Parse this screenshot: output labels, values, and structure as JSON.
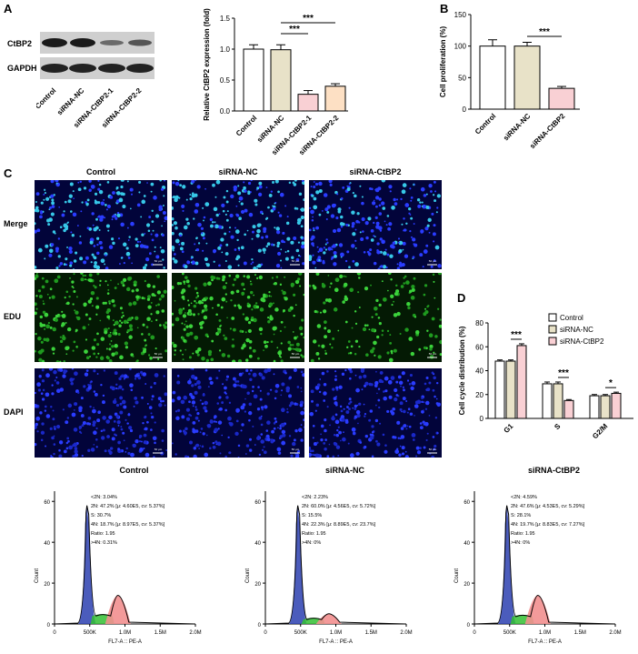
{
  "panels": {
    "a": "A",
    "b": "B",
    "c": "C",
    "d": "D"
  },
  "western_blot": {
    "bands": [
      "CtBP2",
      "GAPDH"
    ],
    "lanes": [
      "Control",
      "siRNA-NC",
      "siRNA-CtBP2-1",
      "siRNA-CtBP2-2"
    ]
  },
  "chart_data": [
    {
      "id": "A-bar",
      "type": "bar",
      "categories": [
        "Control",
        "siRNA-NC",
        "siRNA-CtBP2-1",
        "siRNA-CtBP2-2"
      ],
      "values": [
        1.0,
        0.99,
        0.27,
        0.4
      ],
      "errors": [
        0.07,
        0.08,
        0.06,
        0.04
      ],
      "colors": [
        "#ffffff",
        "#e8e2c8",
        "#f9d0d4",
        "#fde0c4"
      ],
      "ylabel": "Relative CtBP2 expression (fold)",
      "ylim": [
        0,
        1.5
      ],
      "yticks": [
        "0.0",
        "0.5",
        "1.0",
        "1.5"
      ],
      "sig": [
        {
          "label": "***",
          "from": 1,
          "to": 2
        },
        {
          "label": "***",
          "from": 1,
          "to": 3
        }
      ]
    },
    {
      "id": "B-bar",
      "type": "bar",
      "categories": [
        "Control",
        "siRNA-NC",
        "siRNA-CtBP2"
      ],
      "values": [
        100,
        100,
        33
      ],
      "errors": [
        10,
        6,
        3
      ],
      "colors": [
        "#ffffff",
        "#e8e2c8",
        "#f9d0d4"
      ],
      "ylabel": "Cell proliferation (%)",
      "ylim": [
        0,
        150
      ],
      "yticks": [
        "0",
        "50",
        "100",
        "150"
      ],
      "sig": [
        {
          "label": "***",
          "from": 1,
          "to": 2
        }
      ]
    },
    {
      "id": "D-bar",
      "type": "bar",
      "categories": [
        "G1",
        "S",
        "G2/M"
      ],
      "series": [
        {
          "name": "Control",
          "values": [
            48,
            29,
            19
          ],
          "errors": [
            1,
            1.5,
            1
          ],
          "color": "#ffffff"
        },
        {
          "name": "siRNA-NC",
          "values": [
            48,
            29,
            19
          ],
          "errors": [
            1,
            1.5,
            1
          ],
          "color": "#e8e2c8"
        },
        {
          "name": "siRNA-CtBP2",
          "values": [
            61,
            15,
            21
          ],
          "errors": [
            1.5,
            0.8,
            1
          ],
          "color": "#f9d0d4"
        }
      ],
      "ylabel": "Cell cycle distribution (%)",
      "ylim": [
        0,
        80
      ],
      "yticks": [
        "0",
        "20",
        "40",
        "60",
        "80"
      ],
      "sig": [
        "***",
        "***",
        "*"
      ],
      "legend_position": "top-right"
    }
  ],
  "microscopy": {
    "columns": [
      "Control",
      "siRNA-NC",
      "siRNA-CtBP2"
    ],
    "rows": [
      "Merge",
      "EDU",
      "DAPI"
    ],
    "scale_bar": "50 μm"
  },
  "flow": [
    {
      "title": "Control",
      "stats": [
        "<2N: 3.04%",
        "2N: 47.2%  [μ: 4.60E5, cv: 5.37%]",
        "S: 30.7%",
        "4N: 18.7%  [μ: 8.97E5, cv: 5.37%]",
        "Ratio: 1.95",
        ">4N: 0.31%"
      ],
      "s_level": 0.22
    },
    {
      "title": "siRNA-NC",
      "stats": [
        "<2N: 2.23%",
        "2N: 60.0%  [μ: 4.56E5, cv: 5.72%]",
        "S: 15.5%",
        "4N: 22.3%  [μ: 8.89E5, cv: 23.7%]",
        "Ratio: 1.95",
        ">4N: 0%"
      ],
      "s_level": 0.12
    },
    {
      "title": "siRNA-CtBP2",
      "stats": [
        "<2N: 4.59%",
        "2N: 47.6%  [μ: 4.53E5, cv: 5.29%]",
        "S: 28.1%",
        "4N: 19.7%  [μ: 8.83E5, cv: 7.27%]",
        "Ratio: 1.95",
        ">4N: 0%"
      ],
      "s_level": 0.2
    }
  ],
  "flow_axes": {
    "xlabel": "FL7-A :: PE-A",
    "ylabel": "Count",
    "xticks": [
      "0",
      "500K",
      "1.0M",
      "1.5M",
      "2.0M"
    ],
    "yticks": [
      "0",
      "20",
      "40",
      "60"
    ]
  }
}
